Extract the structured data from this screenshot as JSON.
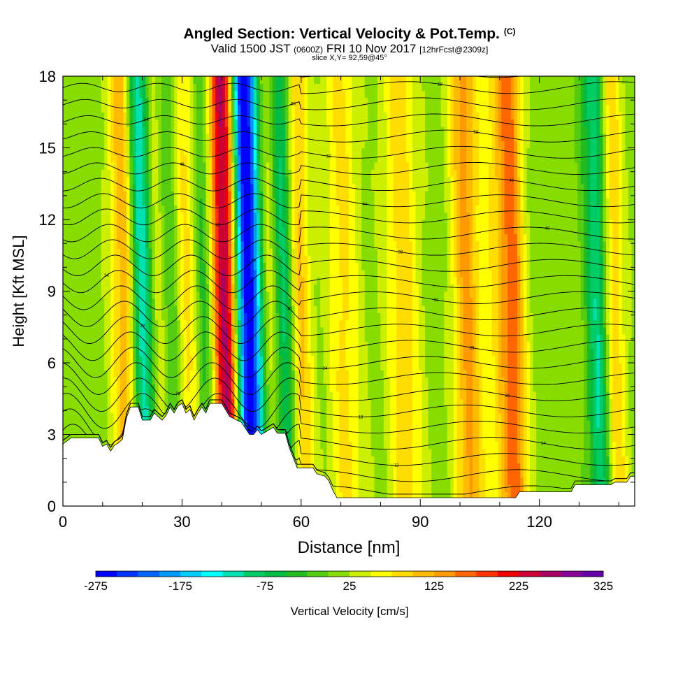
{
  "chart_data": {
    "type": "heatmap",
    "title": "Angled Section: Vertical Velocity & Pot.Temp.",
    "title_unit": "(C)",
    "subtitle_main": "Valid 1500 JST",
    "subtitle_z": "(0600Z)",
    "subtitle_date": "FRI 10 Nov 2017",
    "subtitle_fcst": "[12hrFcst@2309z]",
    "slice_label": "slice X,Y= 92,59@45°",
    "xlabel": "Distance [nm]",
    "ylabel": "Height [Kft MSL]",
    "xlim": [
      0,
      144
    ],
    "ylim": [
      0,
      18
    ],
    "x_ticks": [
      "0",
      "30",
      "60",
      "90",
      "120"
    ],
    "x_tick_values": [
      0,
      30,
      60,
      90,
      120
    ],
    "y_ticks": [
      "0",
      "3",
      "6",
      "9",
      "12",
      "15",
      "18"
    ],
    "y_tick_values": [
      0,
      3,
      6,
      9,
      12,
      15,
      18
    ],
    "colorbar": {
      "label": "Vertical Velocity [cm/s]",
      "tick_labels": [
        "-275",
        "-175",
        "-75",
        "25",
        "125",
        "225",
        "325"
      ],
      "colors": [
        "#0000ff",
        "#0033ff",
        "#0066ff",
        "#0099ff",
        "#00ccff",
        "#00ffff",
        "#00e0b0",
        "#00cc66",
        "#00bb44",
        "#22bb22",
        "#55cc11",
        "#88dd00",
        "#ccee00",
        "#ffff00",
        "#ffdd00",
        "#ffbb00",
        "#ff9900",
        "#ff6600",
        "#ff3300",
        "#ee0000",
        "#cc0033",
        "#aa0066",
        "#880099",
        "#6600aa"
      ]
    },
    "velocity_features": [
      {
        "x": 15,
        "w": 2.5,
        "v": 110
      },
      {
        "x": 18,
        "w": 1.5,
        "v": -60
      },
      {
        "x": 20,
        "w": 2.0,
        "v": -150
      },
      {
        "x": 23,
        "w": 2.5,
        "v": 90
      },
      {
        "x": 26,
        "w": 2.0,
        "v": -80
      },
      {
        "x": 31,
        "w": 2.5,
        "v": 80
      },
      {
        "x": 35,
        "w": 2.0,
        "v": -90
      },
      {
        "x": 38,
        "w": 2.0,
        "v": 80
      },
      {
        "x": 41,
        "w": 2.2,
        "v": 240
      },
      {
        "x": 45,
        "w": 2.2,
        "v": -260
      },
      {
        "x": 48,
        "w": 2.0,
        "v": -120
      },
      {
        "x": 51,
        "w": 2.0,
        "v": 70
      },
      {
        "x": 55,
        "w": 2.0,
        "v": -110
      },
      {
        "x": 59,
        "w": 2.0,
        "v": 100
      },
      {
        "x": 70,
        "w": 3.0,
        "v": 70
      },
      {
        "x": 85,
        "w": 3.0,
        "v": 80
      },
      {
        "x": 101,
        "w": 2.5,
        "v": 120
      },
      {
        "x": 110,
        "w": 3.0,
        "v": 80
      },
      {
        "x": 113,
        "w": 2.0,
        "v": 100
      },
      {
        "x": 134,
        "w": 2.0,
        "v": -120
      },
      {
        "x": 138,
        "w": 2.0,
        "v": 90
      }
    ],
    "terrain": [
      [
        0,
        2.6
      ],
      [
        2,
        2.85
      ],
      [
        9,
        2.85
      ],
      [
        10,
        2.5
      ],
      [
        11,
        2.6
      ],
      [
        12,
        2.3
      ],
      [
        13,
        2.55
      ],
      [
        14,
        2.65
      ],
      [
        15,
        2.8
      ],
      [
        16,
        3.7
      ],
      [
        17,
        4.15
      ],
      [
        19,
        4.15
      ],
      [
        20,
        3.6
      ],
      [
        22,
        3.6
      ],
      [
        23,
        3.9
      ],
      [
        25,
        3.6
      ],
      [
        26,
        3.8
      ],
      [
        27,
        4.15
      ],
      [
        28,
        3.9
      ],
      [
        29,
        4.2
      ],
      [
        30,
        4.3
      ],
      [
        31,
        3.9
      ],
      [
        32,
        4.05
      ],
      [
        33,
        3.6
      ],
      [
        34,
        3.9
      ],
      [
        35,
        4.15
      ],
      [
        36,
        3.9
      ],
      [
        37,
        4.3
      ],
      [
        39,
        4.3
      ],
      [
        40,
        4.3
      ],
      [
        42,
        3.75
      ],
      [
        45,
        3.5
      ],
      [
        46,
        3.25
      ],
      [
        47,
        3.0
      ],
      [
        48,
        3.0
      ],
      [
        49,
        3.2
      ],
      [
        50,
        3.0
      ],
      [
        52,
        3.2
      ],
      [
        53,
        3.3
      ],
      [
        54,
        3.05
      ],
      [
        56,
        3.05
      ],
      [
        57,
        2.45
      ],
      [
        59,
        1.6
      ],
      [
        63,
        1.6
      ],
      [
        64,
        1.35
      ],
      [
        66,
        1.25
      ],
      [
        67,
        1.05
      ],
      [
        68,
        0.65
      ],
      [
        69,
        0.35
      ],
      [
        114,
        0.35
      ],
      [
        115,
        0.6
      ],
      [
        128,
        0.6
      ],
      [
        129,
        0.9
      ],
      [
        138,
        0.9
      ],
      [
        139,
        1.0
      ],
      [
        142,
        1.0
      ],
      [
        143,
        1.25
      ],
      [
        144,
        1.25
      ]
    ],
    "theta_levels": [
      8,
      10,
      12,
      14,
      16,
      18,
      20,
      22,
      24,
      26,
      28,
      30,
      32,
      34,
      36,
      38,
      40,
      42,
      44,
      46,
      48,
      50,
      52,
      54,
      56,
      58,
      60
    ]
  }
}
